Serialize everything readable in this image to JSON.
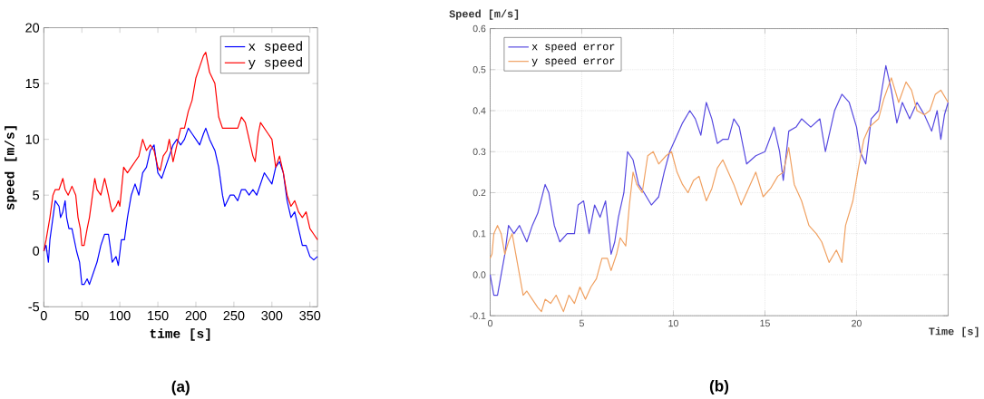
{
  "chart_data": [
    {
      "type": "line",
      "xlabel": "time [s]",
      "ylabel": "speed [m/s]",
      "xlim": [
        0,
        360
      ],
      "ylim": [
        -5,
        20
      ],
      "xticks": [
        0,
        50,
        100,
        150,
        200,
        250,
        300,
        350
      ],
      "yticks": [
        -5,
        0,
        5,
        10,
        15,
        20
      ],
      "legend": "top right",
      "annotations": [
        "(a)"
      ],
      "series": [
        {
          "name": "x speed",
          "color": "#0000ff",
          "x": [
            0,
            3,
            6,
            8,
            12,
            15,
            20,
            22,
            25,
            28,
            30,
            33,
            37,
            40,
            43,
            47,
            50,
            53,
            57,
            60,
            65,
            70,
            75,
            80,
            85,
            88,
            90,
            95,
            98,
            102,
            106,
            110,
            115,
            120,
            125,
            130,
            135,
            140,
            145,
            150,
            155,
            160,
            165,
            170,
            175,
            180,
            185,
            190,
            195,
            200,
            205,
            210,
            213,
            218,
            225,
            230,
            235,
            238,
            245,
            250,
            255,
            260,
            265,
            270,
            275,
            280,
            285,
            290,
            295,
            300,
            305,
            310,
            315,
            320,
            325,
            330,
            335,
            340,
            345,
            350,
            355,
            360
          ],
          "values": [
            0,
            0.5,
            -1,
            1,
            3,
            4.5,
            4,
            3,
            3.5,
            4.5,
            3,
            2,
            2,
            1,
            0,
            -1,
            -3,
            -3,
            -2.5,
            -3,
            -2,
            -1,
            0.5,
            1.5,
            1.5,
            0,
            -1,
            -0.5,
            -1.3,
            1,
            1,
            3,
            5,
            6,
            5,
            7,
            7.5,
            9,
            9.5,
            7,
            6.5,
            7.5,
            8.5,
            9.5,
            10,
            9.5,
            10,
            11,
            10.5,
            10,
            9.5,
            10.5,
            11,
            10,
            9,
            7.5,
            5,
            4,
            5,
            5,
            4.5,
            5.5,
            5.5,
            5,
            5.5,
            5,
            6,
            7,
            6.5,
            6,
            7.5,
            8,
            7,
            4.5,
            3,
            3.5,
            2,
            0.5,
            0.5,
            -0.5,
            -0.8,
            -0.5
          ]
        },
        {
          "name": "y speed",
          "color": "#ff0000",
          "x": [
            0,
            3,
            8,
            12,
            15,
            20,
            25,
            28,
            32,
            37,
            42,
            45,
            48,
            50,
            53,
            57,
            60,
            63,
            67,
            70,
            75,
            80,
            85,
            88,
            90,
            95,
            98,
            100,
            105,
            110,
            115,
            120,
            125,
            130,
            135,
            140,
            145,
            150,
            153,
            157,
            162,
            165,
            170,
            175,
            180,
            185,
            190,
            195,
            200,
            205,
            210,
            213,
            218,
            225,
            230,
            235,
            240,
            245,
            250,
            255,
            260,
            265,
            270,
            275,
            278,
            282,
            285,
            290,
            295,
            300,
            305,
            310,
            315,
            320,
            325,
            330,
            335,
            340,
            345,
            350,
            355,
            360
          ],
          "values": [
            0,
            1,
            3,
            5,
            5.5,
            5.5,
            6.5,
            5.5,
            5,
            5.8,
            5,
            3,
            2,
            0.5,
            0.5,
            2,
            3,
            4.5,
            6.5,
            5.5,
            5,
            6.5,
            5,
            4,
            3.5,
            4,
            4.5,
            4,
            7.5,
            7,
            7.5,
            8,
            8.5,
            10,
            9,
            9.5,
            9,
            7.5,
            7.2,
            8.5,
            9,
            10,
            8,
            9.5,
            11,
            11,
            12.5,
            13.5,
            15.5,
            16.5,
            17.5,
            17.8,
            16,
            15,
            12,
            11,
            11,
            11,
            11,
            11,
            12,
            11.5,
            10,
            8.5,
            8,
            10.5,
            11.5,
            11,
            10.5,
            10,
            7.5,
            8.5,
            7,
            5,
            4,
            4.5,
            3.5,
            3,
            3.5,
            2,
            1.5,
            1
          ]
        }
      ]
    },
    {
      "type": "line",
      "xlabel": "Time [s]",
      "ylabel": "Speed [m/s]",
      "xlim": [
        0,
        25
      ],
      "ylim": [
        -0.1,
        0.6
      ],
      "xticks": [
        0,
        5,
        10,
        15,
        20
      ],
      "yticks": [
        -0.1,
        {
          "value": 0,
          "label": "0.0"
        },
        0.1,
        0.2,
        0.3,
        0.4,
        0.5,
        0.6
      ],
      "grid": true,
      "legend": "top left",
      "annotations": [
        "(b)"
      ],
      "series": [
        {
          "name": "x speed error",
          "color": "#5548e0",
          "x": [
            0,
            0.2,
            0.4,
            0.6,
            0.8,
            1.0,
            1.3,
            1.6,
            2.0,
            2.3,
            2.6,
            3.0,
            3.2,
            3.5,
            3.8,
            4.2,
            4.6,
            4.8,
            5.1,
            5.4,
            5.7,
            6.0,
            6.3,
            6.6,
            6.8,
            7.0,
            7.3,
            7.5,
            7.8,
            8.1,
            8.4,
            8.8,
            9.2,
            9.5,
            9.8,
            10.1,
            10.5,
            10.9,
            11.2,
            11.5,
            11.8,
            12.1,
            12.4,
            12.7,
            13.0,
            13.3,
            13.6,
            14.0,
            14.5,
            15.0,
            15.5,
            15.8,
            16.0,
            16.3,
            16.7,
            17.0,
            17.5,
            18.0,
            18.3,
            18.8,
            19.2,
            19.6,
            20.0,
            20.2,
            20.5,
            20.8,
            21.2,
            21.6,
            21.9,
            22.2,
            22.5,
            22.9,
            23.3,
            23.7,
            24.1,
            24.4,
            24.6,
            24.8,
            25.0
          ],
          "values": [
            0.0,
            -0.05,
            -0.05,
            0.0,
            0.05,
            0.12,
            0.1,
            0.12,
            0.08,
            0.12,
            0.15,
            0.22,
            0.2,
            0.12,
            0.08,
            0.1,
            0.1,
            0.17,
            0.18,
            0.1,
            0.17,
            0.14,
            0.18,
            0.05,
            0.08,
            0.14,
            0.2,
            0.3,
            0.28,
            0.22,
            0.2,
            0.17,
            0.19,
            0.25,
            0.3,
            0.33,
            0.37,
            0.4,
            0.38,
            0.34,
            0.42,
            0.38,
            0.32,
            0.33,
            0.33,
            0.38,
            0.36,
            0.27,
            0.29,
            0.3,
            0.36,
            0.3,
            0.23,
            0.35,
            0.36,
            0.38,
            0.36,
            0.38,
            0.3,
            0.4,
            0.44,
            0.42,
            0.36,
            0.3,
            0.27,
            0.38,
            0.4,
            0.51,
            0.45,
            0.37,
            0.42,
            0.38,
            0.42,
            0.39,
            0.35,
            0.4,
            0.33,
            0.39,
            0.42
          ]
        },
        {
          "name": "y speed error",
          "color": "#f0a060",
          "x": [
            0,
            0.1,
            0.2,
            0.4,
            0.6,
            0.8,
            1.0,
            1.2,
            1.4,
            1.6,
            1.8,
            2.0,
            2.3,
            2.6,
            2.8,
            3.0,
            3.3,
            3.6,
            4.0,
            4.3,
            4.6,
            4.9,
            5.2,
            5.5,
            5.8,
            6.1,
            6.4,
            6.6,
            6.9,
            7.1,
            7.4,
            7.6,
            7.8,
            8.0,
            8.3,
            8.6,
            8.9,
            9.2,
            9.6,
            9.9,
            10.2,
            10.5,
            10.8,
            11.1,
            11.4,
            11.8,
            12.1,
            12.4,
            12.7,
            13.0,
            13.3,
            13.7,
            14.0,
            14.5,
            14.9,
            15.3,
            15.7,
            16.0,
            16.3,
            16.6,
            17.0,
            17.4,
            17.8,
            18.1,
            18.5,
            18.9,
            19.2,
            19.4,
            19.8,
            20.1,
            20.4,
            20.7,
            21.2,
            21.5,
            21.9,
            22.3,
            22.7,
            23.0,
            23.3,
            23.7,
            24.0,
            24.3,
            24.6,
            25.0
          ],
          "values": [
            0.04,
            0.05,
            0.1,
            0.12,
            0.1,
            0.05,
            0.08,
            0.1,
            0.05,
            0.0,
            -0.05,
            -0.04,
            -0.06,
            -0.08,
            -0.09,
            -0.06,
            -0.07,
            -0.05,
            -0.09,
            -0.05,
            -0.07,
            -0.03,
            -0.06,
            -0.03,
            -0.01,
            0.04,
            0.04,
            0.01,
            0.05,
            0.09,
            0.07,
            0.17,
            0.25,
            0.22,
            0.2,
            0.29,
            0.3,
            0.27,
            0.29,
            0.3,
            0.25,
            0.22,
            0.2,
            0.23,
            0.24,
            0.18,
            0.21,
            0.26,
            0.28,
            0.25,
            0.22,
            0.17,
            0.2,
            0.25,
            0.19,
            0.21,
            0.24,
            0.25,
            0.31,
            0.22,
            0.18,
            0.12,
            0.1,
            0.08,
            0.03,
            0.06,
            0.03,
            0.12,
            0.18,
            0.26,
            0.33,
            0.36,
            0.38,
            0.43,
            0.48,
            0.42,
            0.47,
            0.45,
            0.4,
            0.39,
            0.4,
            0.44,
            0.45,
            0.42
          ]
        }
      ]
    }
  ]
}
